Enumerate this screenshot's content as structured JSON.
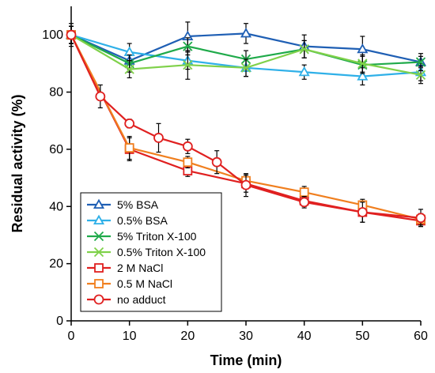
{
  "chart_data": {
    "type": "line",
    "title": "",
    "xlabel": "Time (min)",
    "ylabel": "Residual activity (%)",
    "xlim": [
      0,
      60
    ],
    "ylim": [
      0,
      110
    ],
    "x_ticks": [
      0,
      10,
      20,
      30,
      40,
      50,
      60
    ],
    "y_ticks": [
      0,
      20,
      40,
      60,
      80,
      100
    ],
    "grid": false,
    "legend_position": "bottom-left",
    "series": [
      {
        "name": "5% BSA",
        "color": "#1f5fb4",
        "marker": "triangle",
        "x": [
          0,
          10,
          20,
          30,
          40,
          50,
          60
        ],
        "y": [
          100,
          91,
          99.5,
          100.5,
          96,
          95,
          90.5
        ],
        "err": [
          3,
          3,
          5,
          3.5,
          4,
          4.5,
          2
        ]
      },
      {
        "name": "0.5% BSA",
        "color": "#2fb0e8",
        "marker": "triangle",
        "x": [
          0,
          10,
          20,
          30,
          40,
          50,
          60
        ],
        "y": [
          100,
          94,
          91,
          88.5,
          87,
          85.5,
          87
        ],
        "err": [
          3,
          3,
          3,
          3,
          2.5,
          3,
          3
        ]
      },
      {
        "name": "5% Triton X-100",
        "color": "#1faa4a",
        "marker": "x",
        "x": [
          0,
          10,
          20,
          30,
          40,
          50,
          60
        ],
        "y": [
          100,
          90,
          96,
          91.5,
          95,
          89.5,
          90.5
        ],
        "err": [
          3,
          3,
          3,
          3,
          3,
          3,
          3
        ]
      },
      {
        "name": "0.5% Triton X-100",
        "color": "#7fd14a",
        "marker": "x",
        "x": [
          0,
          10,
          20,
          30,
          40,
          50,
          60
        ],
        "y": [
          100,
          88,
          89.5,
          88.5,
          95,
          90,
          86
        ],
        "err": [
          3,
          3,
          5,
          3,
          3,
          3,
          3
        ]
      },
      {
        "name": "2 M NaCl",
        "color": "#e02020",
        "marker": "square",
        "x": [
          0,
          10,
          20,
          30,
          40,
          50,
          60
        ],
        "y": [
          100,
          60,
          52.5,
          48,
          42,
          38,
          35
        ],
        "err": [
          3,
          4,
          2,
          3,
          2,
          3.5,
          2
        ]
      },
      {
        "name": "0.5 M NaCl",
        "color": "#f07f1f",
        "marker": "square",
        "x": [
          0,
          10,
          20,
          30,
          40,
          50,
          60
        ],
        "y": [
          100,
          60.5,
          55.5,
          49,
          45,
          40.5,
          35.5
        ],
        "err": [
          3,
          4,
          2,
          2,
          2,
          2,
          2
        ]
      },
      {
        "name": "no adduct",
        "color": "#e02020",
        "marker": "circle",
        "x": [
          0,
          5,
          10,
          15,
          20,
          25,
          30,
          40,
          50,
          60
        ],
        "y": [
          100,
          78.5,
          69,
          64,
          61,
          55.5,
          47.5,
          41.5,
          38,
          36
        ],
        "err": [
          4,
          4,
          1.5,
          5,
          2.5,
          4,
          4,
          2,
          3.5,
          3
        ]
      }
    ]
  }
}
